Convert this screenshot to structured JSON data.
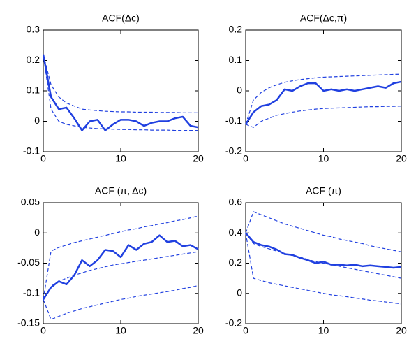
{
  "chart_data": [
    {
      "type": "line",
      "title": "ACF(Δc)",
      "x": [
        0,
        1,
        2,
        3,
        4,
        5,
        6,
        7,
        8,
        9,
        10,
        11,
        12,
        13,
        14,
        15,
        16,
        17,
        18,
        19,
        20
      ],
      "xlim": [
        0,
        20
      ],
      "xticks": [
        0,
        10,
        20
      ],
      "ylim": [
        -0.1,
        0.3
      ],
      "yticks": [
        -0.1,
        0,
        0.1,
        0.2,
        0.3
      ],
      "series": [
        {
          "color": "#2040e0",
          "style": "solid",
          "values": [
            0.22,
            0.08,
            0.04,
            0.045,
            0.01,
            -0.03,
            0.0,
            0.005,
            -0.03,
            -0.01,
            0.005,
            0.005,
            0.0,
            -0.015,
            -0.005,
            0.0,
            0.0,
            0.01,
            0.015,
            -0.015,
            -0.02
          ]
        },
        {
          "color": "#2040e0",
          "style": "dashed",
          "values": [
            0.22,
            0.12,
            0.08,
            0.06,
            0.05,
            0.04,
            0.037,
            0.035,
            0.033,
            0.032,
            0.031,
            0.031,
            0.03,
            0.03,
            0.03,
            0.029,
            0.029,
            0.029,
            0.028,
            0.028,
            0.028
          ]
        },
        {
          "color": "#2040e0",
          "style": "dashed",
          "values": [
            0.22,
            0.04,
            0.0,
            -0.01,
            -0.015,
            -0.02,
            -0.022,
            -0.024,
            -0.025,
            -0.026,
            -0.027,
            -0.027,
            -0.028,
            -0.028,
            -0.029,
            -0.029,
            -0.029,
            -0.03,
            -0.03,
            -0.03,
            -0.03
          ]
        }
      ]
    },
    {
      "type": "line",
      "title": "ACF(Δc,π)",
      "x": [
        0,
        1,
        2,
        3,
        4,
        5,
        6,
        7,
        8,
        9,
        10,
        11,
        12,
        13,
        14,
        15,
        16,
        17,
        18,
        19,
        20
      ],
      "xlim": [
        0,
        20
      ],
      "xticks": [
        0,
        10,
        20
      ],
      "ylim": [
        -0.2,
        0.2
      ],
      "yticks": [
        -0.2,
        -0.1,
        0,
        0.1,
        0.2
      ],
      "series": [
        {
          "color": "#2040e0",
          "style": "solid",
          "values": [
            -0.11,
            -0.07,
            -0.05,
            -0.045,
            -0.03,
            0.005,
            0.0,
            0.015,
            0.025,
            0.025,
            0.0,
            0.005,
            0.0,
            0.005,
            0.0,
            0.005,
            0.01,
            0.015,
            0.01,
            0.025,
            0.03
          ]
        },
        {
          "color": "#2040e0",
          "style": "dashed",
          "values": [
            -0.11,
            -0.03,
            -0.005,
            0.01,
            0.02,
            0.028,
            0.033,
            0.037,
            0.04,
            0.043,
            0.045,
            0.046,
            0.047,
            0.048,
            0.049,
            0.05,
            0.051,
            0.052,
            0.053,
            0.054,
            0.055
          ]
        },
        {
          "color": "#2040e0",
          "style": "dashed",
          "values": [
            -0.11,
            -0.12,
            -0.1,
            -0.09,
            -0.08,
            -0.075,
            -0.07,
            -0.066,
            -0.063,
            -0.06,
            -0.058,
            -0.057,
            -0.056,
            -0.055,
            -0.054,
            -0.053,
            -0.052,
            -0.052,
            -0.051,
            -0.051,
            -0.05
          ]
        }
      ]
    },
    {
      "type": "line",
      "title": "ACF (π, Δc)",
      "x": [
        0,
        1,
        2,
        3,
        4,
        5,
        6,
        7,
        8,
        9,
        10,
        11,
        12,
        13,
        14,
        15,
        16,
        17,
        18,
        19,
        20
      ],
      "xlim": [
        0,
        20
      ],
      "xticks": [
        0,
        10,
        20
      ],
      "ylim": [
        -0.15,
        0.05
      ],
      "yticks": [
        -0.15,
        -0.1,
        -0.05,
        0,
        0.05
      ],
      "series": [
        {
          "color": "#2040e0",
          "style": "solid",
          "values": [
            -0.11,
            -0.09,
            -0.08,
            -0.085,
            -0.07,
            -0.045,
            -0.055,
            -0.045,
            -0.028,
            -0.03,
            -0.04,
            -0.02,
            -0.028,
            -0.018,
            -0.015,
            -0.004,
            -0.015,
            -0.013,
            -0.022,
            -0.02,
            -0.027
          ]
        },
        {
          "color": "#2040e0",
          "style": "dashed",
          "values": [
            -0.11,
            -0.03,
            -0.024,
            -0.02,
            -0.016,
            -0.013,
            -0.01,
            -0.007,
            -0.004,
            -0.001,
            0.002,
            0.005,
            0.007,
            0.01,
            0.012,
            0.015,
            0.017,
            0.02,
            0.022,
            0.025,
            0.028
          ]
        },
        {
          "color": "#2040e0",
          "style": "dashed",
          "values": [
            -0.11,
            -0.088,
            -0.08,
            -0.075,
            -0.07,
            -0.066,
            -0.062,
            -0.059,
            -0.056,
            -0.053,
            -0.051,
            -0.049,
            -0.047,
            -0.045,
            -0.043,
            -0.041,
            -0.039,
            -0.037,
            -0.035,
            -0.033,
            -0.031
          ]
        },
        {
          "color": "#2040e0",
          "style": "dashed",
          "values": [
            -0.11,
            -0.143,
            -0.138,
            -0.133,
            -0.129,
            -0.125,
            -0.122,
            -0.119,
            -0.116,
            -0.113,
            -0.11,
            -0.108,
            -0.105,
            -0.103,
            -0.101,
            -0.099,
            -0.097,
            -0.095,
            -0.092,
            -0.09,
            -0.087
          ]
        }
      ]
    },
    {
      "type": "line",
      "title": "ACF (π)",
      "x": [
        0,
        1,
        2,
        3,
        4,
        5,
        6,
        7,
        8,
        9,
        10,
        11,
        12,
        13,
        14,
        15,
        16,
        17,
        18,
        19,
        20
      ],
      "xlim": [
        0,
        20
      ],
      "xticks": [
        0,
        10,
        20
      ],
      "ylim": [
        -0.2,
        0.6
      ],
      "yticks": [
        -0.2,
        0,
        0.2,
        0.4,
        0.6
      ],
      "series": [
        {
          "color": "#2040e0",
          "style": "solid",
          "values": [
            0.4,
            0.34,
            0.32,
            0.31,
            0.29,
            0.26,
            0.255,
            0.235,
            0.22,
            0.2,
            0.21,
            0.19,
            0.19,
            0.185,
            0.19,
            0.18,
            0.185,
            0.18,
            0.175,
            0.17,
            0.175
          ]
        },
        {
          "color": "#2040e0",
          "style": "dashed",
          "values": [
            0.4,
            0.54,
            0.52,
            0.5,
            0.48,
            0.46,
            0.445,
            0.43,
            0.415,
            0.4,
            0.385,
            0.375,
            0.36,
            0.35,
            0.34,
            0.33,
            0.315,
            0.305,
            0.295,
            0.285,
            0.275
          ]
        },
        {
          "color": "#2040e0",
          "style": "dashed",
          "values": [
            0.4,
            0.33,
            0.31,
            0.295,
            0.28,
            0.265,
            0.25,
            0.24,
            0.225,
            0.21,
            0.2,
            0.19,
            0.18,
            0.17,
            0.16,
            0.15,
            0.14,
            0.13,
            0.12,
            0.11,
            0.1
          ]
        },
        {
          "color": "#2040e0",
          "style": "dashed",
          "values": [
            0.4,
            0.1,
            0.085,
            0.07,
            0.06,
            0.05,
            0.04,
            0.03,
            0.02,
            0.01,
            0.0,
            -0.01,
            -0.015,
            -0.022,
            -0.03,
            -0.037,
            -0.045,
            -0.05,
            -0.057,
            -0.063,
            -0.07
          ]
        }
      ]
    }
  ]
}
